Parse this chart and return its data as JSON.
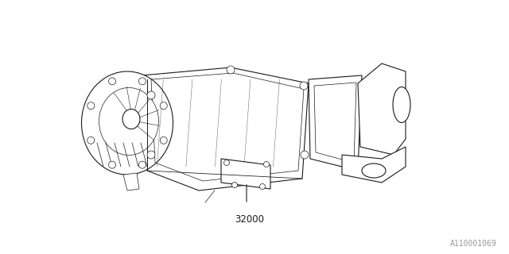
{
  "part_number": "32000",
  "diagram_id": "A110001069",
  "bg_color": "#ffffff",
  "line_color": "#1a1a1a",
  "fig_width": 6.4,
  "fig_height": 3.2,
  "dpi": 100,
  "diagram_id_fontsize": 7,
  "part_fontsize": 8.5,
  "lw_main": 0.8,
  "lw_thin": 0.5,
  "lw_thick": 1.0
}
